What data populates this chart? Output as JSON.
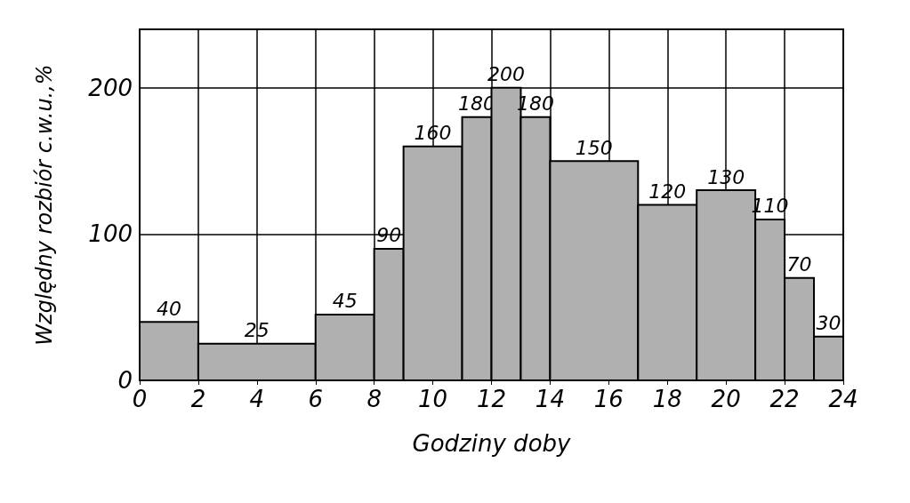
{
  "chart_data": {
    "type": "histogram",
    "xlabel": "Godziny doby",
    "ylabel": "Względny rozbiór c.w.u.,%",
    "bins": [
      0,
      2,
      6,
      8,
      9,
      11,
      12,
      13,
      14,
      17,
      19,
      21,
      22,
      23,
      24
    ],
    "values": [
      40,
      25,
      45,
      90,
      160,
      180,
      200,
      180,
      150,
      120,
      130,
      110,
      70,
      30
    ],
    "color": "#b0b0b0",
    "data_labels": true,
    "grid": true,
    "xlim": [
      0,
      24
    ],
    "xticks": [
      0,
      2,
      4,
      6,
      8,
      10,
      12,
      14,
      16,
      18,
      20,
      22,
      24
    ],
    "ylim": [
      0,
      240
    ],
    "yticks": [
      0,
      100,
      200
    ]
  }
}
